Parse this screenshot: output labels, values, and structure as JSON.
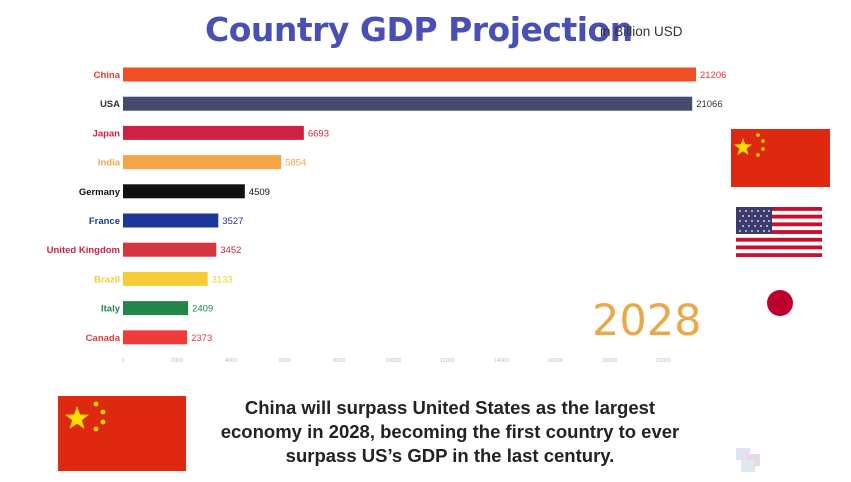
{
  "title": "Country GDP Projection",
  "subtitle": "in Billion USD",
  "year": "2028",
  "caption": "China will surpass United States as the largest economy in 2028, becoming the first country to ever surpass US’s GDP in the last century.",
  "chart_data": {
    "type": "bar",
    "orientation": "horizontal",
    "title": "Country GDP Projection",
    "subtitle": "in Billion USD",
    "categories": [
      "China",
      "USA",
      "Japan",
      "India",
      "Germany",
      "France",
      "United Kingdom",
      "Brazil",
      "Italy",
      "Canada"
    ],
    "values": [
      21206,
      21066,
      6693,
      5854,
      4509,
      3527,
      3452,
      3133,
      2409,
      2373
    ],
    "value_labels": [
      "21206",
      "21066",
      "6693",
      "5854",
      "4509",
      "3527",
      "3452",
      "3133",
      "2409",
      "2373"
    ],
    "colors": [
      "#f04e23",
      "#464a6f",
      "#cf2143",
      "#f6a448",
      "#111111",
      "#1d3699",
      "#d6343e",
      "#f5cb37",
      "#22854a",
      "#ef3b3b"
    ],
    "label_colors": [
      "#e83a2a",
      "#333333",
      "#cf2143",
      "#f6a448",
      "#111111",
      "#1d3699",
      "#cf2143",
      "#f5cb37",
      "#22854a",
      "#e83a3a"
    ],
    "x_ticks": [
      0,
      2000,
      4000,
      6000,
      8000,
      10000,
      12000,
      14000,
      16000,
      18000,
      20000
    ],
    "x_tick_labels": [
      "0",
      "2000",
      "4000",
      "6000",
      "8000",
      "10000",
      "12000",
      "14000",
      "16000",
      "18000",
      "20000"
    ],
    "xlim": [
      0,
      21206
    ],
    "legend": "none",
    "grid": false
  },
  "flags": {
    "china_side": "flag-china-icon",
    "usa_side": "flag-usa-icon",
    "japan_side": "flag-japan-icon",
    "china_caption": "flag-china-icon"
  }
}
